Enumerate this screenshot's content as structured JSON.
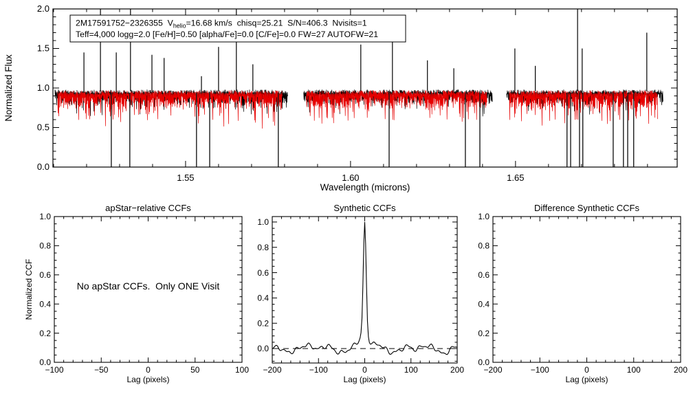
{
  "figure": {
    "background": "#ffffff",
    "observed_color": "#000000",
    "synthetic_color": "#e60000"
  },
  "chart_data": [
    {
      "id": "spectrum",
      "type": "line",
      "xlabel": "Wavelength (microns)",
      "ylabel": "Normalized Flux",
      "xlim": [
        1.5098,
        1.699
      ],
      "ylim": [
        0.0,
        2.0
      ],
      "xticks": [
        1.55,
        1.6,
        1.65
      ],
      "xtick_labels": [
        "1.55",
        "1.60",
        "1.65"
      ],
      "minor_x": 0.01,
      "yticks": [
        0.0,
        0.5,
        1.0,
        1.5,
        2.0
      ],
      "ytick_labels": [
        "0.0",
        "0.5",
        "1.0",
        "1.5",
        "2.0"
      ],
      "minor_y": 0.1,
      "grid": false,
      "legend": {
        "line1_pre": "2M17591752−2326355  V",
        "line1_sub": "helio",
        "line1_post": "=16.68 km/s  chisq=25.21  S/N=406.3  Nvisits=1",
        "line2": "Teff=4,000 logg=2.0 [Fe/H]=0.50 [alpha/Fe]=0.0 [C/Fe]=0.0 FW=27 AUTOFW=21"
      },
      "series": [
        {
          "name": "observed spectrum",
          "color": "#000000"
        },
        {
          "name": "best-fit synthetic spectrum",
          "color": "#e60000"
        }
      ],
      "continuum_level": 0.92,
      "segments_microns": [
        [
          1.5104,
          1.581
        ],
        [
          1.5858,
          1.6431
        ],
        [
          1.6473,
          1.6948
        ]
      ],
      "up_spikes": [
        [
          1.5192,
          1.45
        ],
        [
          1.5242,
          2.05
        ],
        [
          1.529,
          1.45
        ],
        [
          1.5333,
          2.05
        ],
        [
          1.5398,
          1.42
        ],
        [
          1.5435,
          1.38
        ],
        [
          1.5548,
          1.15
        ],
        [
          1.56,
          1.52
        ],
        [
          1.5654,
          2.05
        ],
        [
          1.5704,
          1.3
        ],
        [
          1.6031,
          1.55
        ],
        [
          1.6127,
          1.62
        ],
        [
          1.6233,
          1.35
        ],
        [
          1.6313,
          1.25
        ],
        [
          1.6498,
          1.5
        ],
        [
          1.656,
          1.28
        ],
        [
          1.6688,
          2.05
        ],
        [
          1.6702,
          1.5
        ],
        [
          1.6898,
          1.7
        ]
      ],
      "down_spikes": [
        1.5275,
        1.5331,
        1.5533,
        1.5573,
        1.5781,
        1.6117,
        1.6348,
        1.6392,
        1.6656,
        1.6667,
        1.6694,
        1.6704,
        1.6796,
        1.6827,
        1.684,
        1.6858
      ],
      "noise_model": {
        "observed": {
          "seed": 11,
          "top": 0.955,
          "top_jitter": 0.05,
          "dip_min": 0.03,
          "dip_range": 0.12,
          "deep_prob": 0.22,
          "deep_extra": 0.15
        },
        "synthetic": {
          "seed": 77,
          "top": 0.945,
          "top_jitter": 0.05,
          "dip_min": 0.05,
          "dip_range": 0.15,
          "deep_prob": 0.3,
          "deep_extra": 0.25
        }
      }
    },
    {
      "id": "apstar_ccf",
      "type": "line",
      "title": "apStar−relative CCFs",
      "xlabel": "Lag (pixels)",
      "ylabel": "Normalized CCF",
      "message": "No apStar CCFs.  Only ONE Visit",
      "xlim": [
        -100,
        100
      ],
      "ylim": [
        0.0,
        1.0
      ],
      "xticks": [
        -100,
        -50,
        0,
        50,
        100
      ],
      "xtick_labels": [
        "−100",
        "−50",
        "0",
        "50",
        "100"
      ],
      "minor_x": 10,
      "yticks": [
        0.0,
        0.2,
        0.4,
        0.6,
        0.8,
        1.0
      ],
      "ytick_labels": [
        "0.0",
        "0.2",
        "0.4",
        "0.6",
        "0.8",
        "1.0"
      ],
      "minor_y": 0.05,
      "series": []
    },
    {
      "id": "synthetic_ccf",
      "type": "line",
      "title": "Synthetic CCFs",
      "xlabel": "Lag (pixels)",
      "xlim": [
        -200,
        200
      ],
      "ylim": [
        -0.114,
        1.043
      ],
      "xticks": [
        -200,
        -100,
        0,
        100,
        200
      ],
      "xtick_labels": [
        "−200",
        "−100",
        "0",
        "100",
        "200"
      ],
      "minor_x": 20,
      "yticks": [
        0.0,
        0.2,
        0.4,
        0.6,
        0.8,
        1.0
      ],
      "ytick_labels": [
        "0.0",
        "0.2",
        "0.4",
        "0.6",
        "0.8",
        "1.0"
      ],
      "minor_y": 0.05,
      "zero_line_dashed": true,
      "series": [
        {
          "name": "synthetic CCF",
          "color": "#000000"
        }
      ],
      "peak": {
        "center": 0,
        "height": 1.0,
        "weight_narrow": 0.91,
        "sigma_narrow": 3.1,
        "weight_broad": 0.09,
        "sigma_broad": 10.5
      },
      "baseline_components": [
        {
          "a": 0.02,
          "f": 0.055,
          "p": 1.3
        },
        {
          "a": 0.016,
          "f": 0.115,
          "p": 4.1
        },
        {
          "a": 0.012,
          "f": 0.26,
          "p": 2.2
        },
        {
          "a": 0.008,
          "f": 0.45,
          "p": 5.6
        }
      ],
      "jitter": {
        "seed": 9,
        "amp": 0.014,
        "step": 12
      }
    },
    {
      "id": "difference_synthetic_ccf",
      "type": "line",
      "title": "Difference Synthetic CCFs",
      "xlabel": "Lag (pixels)",
      "xlim": [
        -200,
        200
      ],
      "ylim": [
        0.0,
        1.0
      ],
      "xticks": [
        -200,
        -100,
        0,
        100,
        200
      ],
      "xtick_labels": [
        "−200",
        "−100",
        "0",
        "100",
        "200"
      ],
      "minor_x": 20,
      "yticks": [
        0.0,
        0.2,
        0.4,
        0.6,
        0.8,
        1.0
      ],
      "ytick_labels": [
        "0.0",
        "0.2",
        "0.4",
        "0.6",
        "0.8",
        "1.0"
      ],
      "minor_y": 0.05,
      "series": []
    }
  ]
}
